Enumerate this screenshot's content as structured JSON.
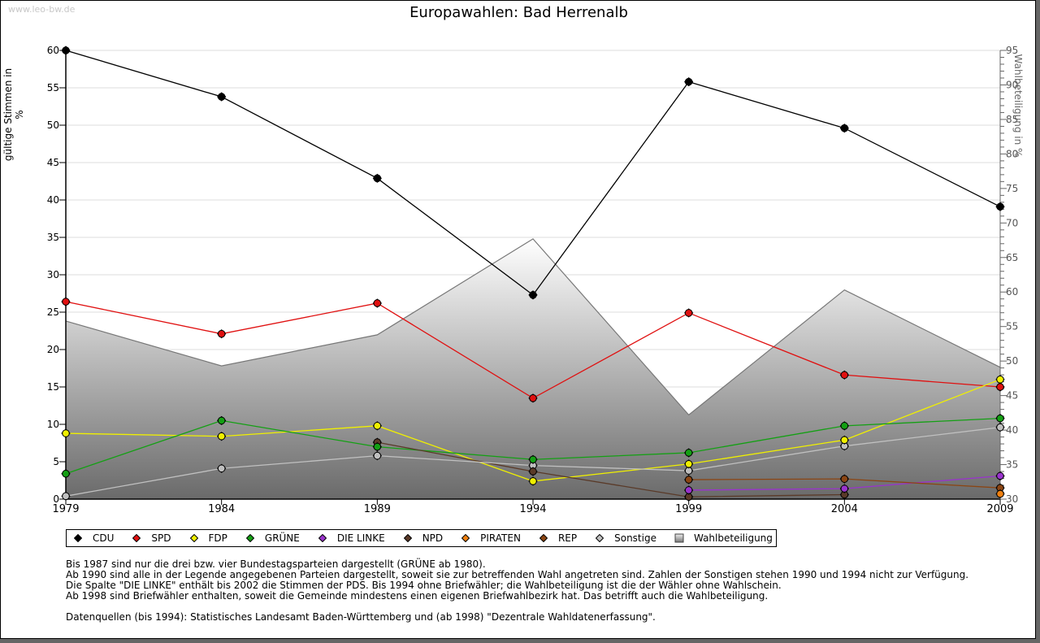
{
  "watermark": "www.leo-bw.de",
  "chart_data": {
    "type": "line",
    "title": "Europawahlen: Bad Herrenalb",
    "xlabel": "",
    "ylabel": "gültige Stimmen in %",
    "y2label": "Wahlbeteiligung in %",
    "x": [
      1979,
      1984,
      1989,
      1994,
      1999,
      2004,
      2009
    ],
    "ylim": [
      0,
      60
    ],
    "y2lim": [
      30,
      95
    ],
    "yticks": [
      0,
      5,
      10,
      15,
      20,
      25,
      30,
      35,
      40,
      45,
      50,
      55,
      60
    ],
    "y2ticks": [
      30,
      35,
      40,
      45,
      50,
      55,
      60,
      65,
      70,
      75,
      80,
      85,
      90,
      95
    ],
    "grid": true,
    "legend_position": "bottom",
    "series": [
      {
        "name": "CDU",
        "color": "#000000",
        "values": [
          60.0,
          53.8,
          42.9,
          27.3,
          55.8,
          49.6,
          39.1
        ]
      },
      {
        "name": "SPD",
        "color": "#e01010",
        "values": [
          26.4,
          22.1,
          26.2,
          13.5,
          24.9,
          16.6,
          15.0
        ]
      },
      {
        "name": "FDP",
        "color": "#f0f000",
        "values": [
          8.8,
          8.4,
          9.8,
          2.4,
          4.7,
          7.9,
          16.0
        ]
      },
      {
        "name": "GRÜNE",
        "color": "#14a014",
        "values": [
          3.4,
          10.5,
          7.0,
          5.3,
          6.2,
          9.8,
          10.8
        ]
      },
      {
        "name": "DIE LINKE",
        "color": "#9933cc",
        "values": [
          null,
          null,
          null,
          null,
          1.2,
          1.4,
          3.1
        ]
      },
      {
        "name": "NPD",
        "color": "#5a3a28",
        "values": [
          null,
          null,
          7.6,
          3.7,
          0.3,
          0.6,
          null
        ]
      },
      {
        "name": "PIRATEN",
        "color": "#f08010",
        "values": [
          null,
          null,
          null,
          null,
          null,
          null,
          0.7
        ]
      },
      {
        "name": "REP",
        "color": "#8b4513",
        "values": [
          null,
          null,
          null,
          null,
          2.6,
          2.7,
          1.5
        ]
      },
      {
        "name": "Sonstige",
        "color": "#c0c0c0",
        "values": [
          0.4,
          4.1,
          5.8,
          4.5,
          3.8,
          7.1,
          9.6
        ]
      }
    ],
    "area": {
      "name": "Wahlbeteiligung",
      "axis": "right",
      "values": [
        55.8,
        49.3,
        53.8,
        67.7,
        42.2,
        60.3,
        49.1
      ]
    }
  },
  "legend": [
    {
      "label": "CDU",
      "color": "#000000",
      "shape": "diamond"
    },
    {
      "label": "SPD",
      "color": "#e01010",
      "shape": "diamond"
    },
    {
      "label": "FDP",
      "color": "#f0f000",
      "shape": "diamond"
    },
    {
      "label": "GRÜNE",
      "color": "#14a014",
      "shape": "diamond"
    },
    {
      "label": "DIE LINKE",
      "color": "#9933cc",
      "shape": "diamond"
    },
    {
      "label": "NPD",
      "color": "#5a3a28",
      "shape": "diamond"
    },
    {
      "label": "PIRATEN",
      "color": "#f08010",
      "shape": "diamond"
    },
    {
      "label": "REP",
      "color": "#8b4513",
      "shape": "diamond"
    },
    {
      "label": "Sonstige",
      "color": "#c0c0c0",
      "shape": "diamond"
    },
    {
      "label": "Wahlbeteiligung",
      "color": "#aaaaaa",
      "shape": "square"
    }
  ],
  "notes": [
    "Bis 1987 sind nur die drei bzw. vier Bundestagsparteien dargestellt (GRÜNE ab 1980).",
    "Ab 1990 sind alle in der Legende angegebenen Parteien dargestellt, soweit sie zur betreffenden Wahl angetreten sind. Zahlen der Sonstigen stehen 1990 und 1994 nicht zur Verfügung.",
    "Die Spalte \"DIE LINKE\" enthält bis 2002 die Stimmen der PDS. Bis 1994 ohne Briefwähler; die Wahlbeteiligung ist die der Wähler ohne Wahlschein.",
    "Ab 1998 sind Briefwähler enthalten, soweit die Gemeinde mindestens einen eigenen Briefwahlbezirk hat. Das betrifft auch die Wahlbeteiligung."
  ],
  "source": "Datenquellen (bis 1994): Statistisches Landesamt Baden-Württemberg und (ab 1998) \"Dezentrale Wahldatenerfassung\"."
}
